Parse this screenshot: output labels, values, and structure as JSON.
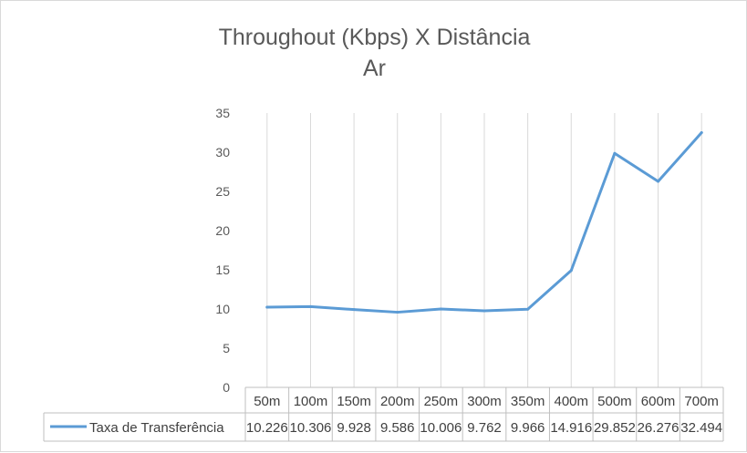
{
  "colors": {
    "series_line": "#5b9bd5",
    "grid": "#d9d9d9",
    "text": "#595959",
    "border": "#bfbfbf"
  },
  "chart_data": {
    "type": "line",
    "title_line1": "Throughout  (Kbps) X Distância",
    "title_line2": "Ar",
    "xlabel": "",
    "ylabel": "",
    "categories": [
      "50m",
      "100m",
      "150m",
      "200m",
      "250m",
      "300m",
      "350m",
      "400m",
      "500m",
      "600m",
      "700m"
    ],
    "series": [
      {
        "name": "Taxa de Transferência",
        "values": [
          10.226,
          10.306,
          9.928,
          9.586,
          10.006,
          9.762,
          9.966,
          14.916,
          29.852,
          26.276,
          32.494
        ],
        "value_labels": [
          "10.226",
          "10.306",
          "9.928",
          "9.586",
          "10.006",
          "9.762",
          "9.966",
          "14.916",
          "29.852",
          "26.276",
          "32.494"
        ]
      }
    ],
    "ylim": [
      0,
      35
    ],
    "y_ticks": [
      0,
      5,
      10,
      15,
      20,
      25,
      30,
      35
    ],
    "grid": "vertical",
    "legend": "data-table-row"
  }
}
